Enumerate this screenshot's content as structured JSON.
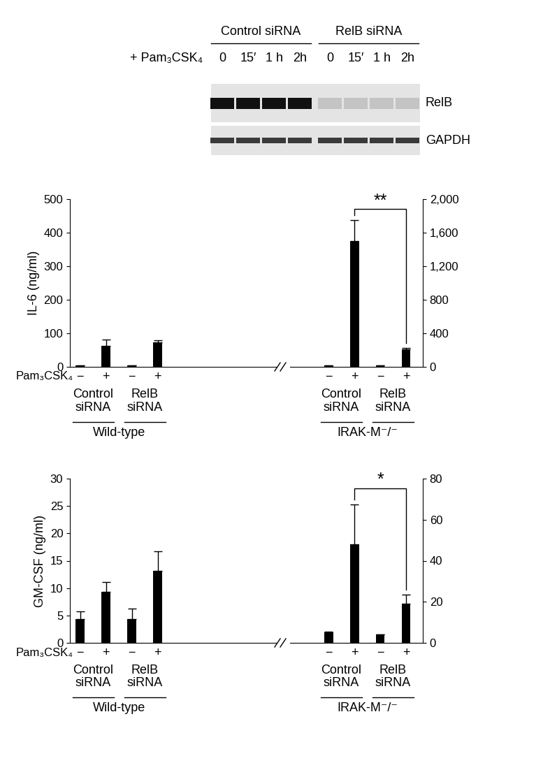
{
  "blot": {
    "treatment": "+ Pam₃CSK₄",
    "groups": [
      {
        "name": "Control siRNA",
        "lanes": [
          "0",
          "15′",
          "1 h",
          "2h"
        ]
      },
      {
        "name": "RelB siRNA",
        "lanes": [
          "0",
          "15′",
          "1 h",
          "2h"
        ]
      }
    ],
    "bands": [
      "RelB",
      "GAPDH"
    ]
  },
  "chart_data": [
    {
      "type": "bar",
      "ylabel": "IL-6 (ng/ml)",
      "xlabel": "Pam₃CSK₄",
      "categories": [
        "−",
        "+",
        "−",
        "+"
      ],
      "groups": [
        "Control siRNA",
        "RelB siRNA"
      ],
      "ylim": [
        0,
        500
      ],
      "yticks": [
        0,
        100,
        200,
        300,
        400,
        500
      ],
      "y2lim": [
        0,
        2000
      ],
      "y2ticks": [
        0,
        400,
        800,
        {
          "value": 1200,
          "label": "1,200"
        },
        {
          "value": 1600,
          "label": "1,600"
        },
        {
          "value": 2000,
          "label": "2,000"
        }
      ],
      "series": [
        {
          "name": "Wild-type",
          "color": "#000000",
          "values": [
            5,
            63,
            5,
            72
          ],
          "errors": [
            0,
            18,
            0,
            8
          ]
        },
        {
          "name": "IRAK-M⁻/⁻",
          "color": "#000000",
          "axis": "y2",
          "values": [
            15,
            1500,
            15,
            205
          ],
          "errors": [
            0,
            250,
            0,
            20
          ]
        }
      ],
      "significance": [
        {
          "series": "IRAK-M⁻/⁻",
          "from": 1,
          "to": 3,
          "label": "**"
        }
      ]
    },
    {
      "type": "bar",
      "ylabel": "GM-CSF (ng/ml)",
      "xlabel": "Pam₃CSK₄",
      "categories": [
        "−",
        "+",
        "−",
        "+"
      ],
      "groups": [
        "Control siRNA",
        "RelB siRNA"
      ],
      "ylim": [
        0,
        30
      ],
      "yticks": [
        0,
        5,
        10,
        15,
        20,
        25,
        30
      ],
      "y2lim": [
        0,
        80
      ],
      "y2ticks": [
        0,
        20,
        40,
        60,
        80
      ],
      "series": [
        {
          "name": "Wild-type",
          "color": "#000000",
          "values": [
            4.3,
            9.3,
            4.4,
            13.1
          ],
          "errors": [
            1.4,
            1.8,
            1.8,
            3.6
          ]
        },
        {
          "name": "IRAK-M⁻/⁻",
          "color": "#000000",
          "axis": "y2",
          "values": [
            5,
            48,
            4.2,
            19
          ],
          "errors": [
            0.5,
            19.5,
            0,
            4.5
          ]
        }
      ],
      "significance": [
        {
          "series": "IRAK-M⁻/⁻",
          "from": 1,
          "to": 3,
          "label": "*"
        }
      ]
    }
  ]
}
